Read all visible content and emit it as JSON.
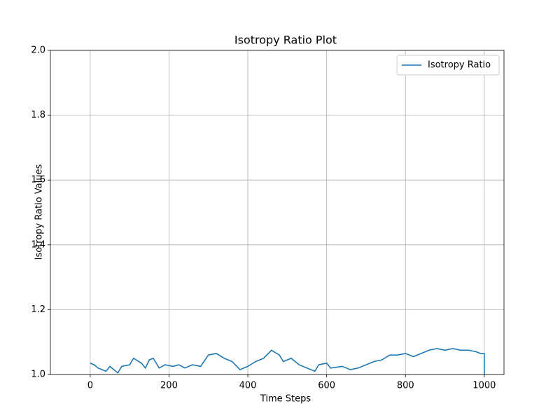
{
  "chart_data": {
    "type": "line",
    "title": "Isotropy Ratio Plot",
    "x_label": "Time Steps",
    "y_label": "Isotropy Ratio Values",
    "x": [
      0,
      10,
      20,
      40,
      50,
      60,
      70,
      80,
      100,
      110,
      130,
      140,
      150,
      160,
      175,
      190,
      210,
      225,
      240,
      260,
      280,
      300,
      320,
      340,
      360,
      380,
      400,
      420,
      440,
      460,
      480,
      490,
      510,
      530,
      550,
      570,
      580,
      600,
      610,
      640,
      660,
      680,
      700,
      720,
      740,
      760,
      780,
      800,
      820,
      840,
      860,
      880,
      900,
      920,
      940,
      960,
      980,
      990,
      1000,
      1000
    ],
    "series": [
      {
        "name": "Isotropy Ratio",
        "color": "#1f77b4",
        "values": [
          1.035,
          1.03,
          1.02,
          1.01,
          1.025,
          1.015,
          1.005,
          1.025,
          1.03,
          1.05,
          1.035,
          1.02,
          1.045,
          1.05,
          1.02,
          1.03,
          1.025,
          1.03,
          1.02,
          1.03,
          1.025,
          1.06,
          1.065,
          1.05,
          1.04,
          1.015,
          1.025,
          1.04,
          1.05,
          1.075,
          1.06,
          1.04,
          1.05,
          1.03,
          1.02,
          1.01,
          1.03,
          1.035,
          1.02,
          1.025,
          1.015,
          1.02,
          1.03,
          1.04,
          1.045,
          1.06,
          1.06,
          1.065,
          1.055,
          1.065,
          1.075,
          1.08,
          1.075,
          1.08,
          1.075,
          1.075,
          1.07,
          1.065,
          1.065,
          1.0
        ]
      }
    ],
    "xlim": [
      -101,
      1050
    ],
    "xticks": [
      0,
      200,
      400,
      600,
      800,
      1000
    ],
    "ylim": [
      1.0,
      2.0
    ],
    "yticks": [
      {
        "value": 1.0,
        "label": "1.0"
      },
      1.2,
      1.4,
      1.6,
      1.8,
      {
        "value": 2.0,
        "label": "2.0"
      }
    ],
    "grid": true,
    "legend": "upper-right"
  }
}
